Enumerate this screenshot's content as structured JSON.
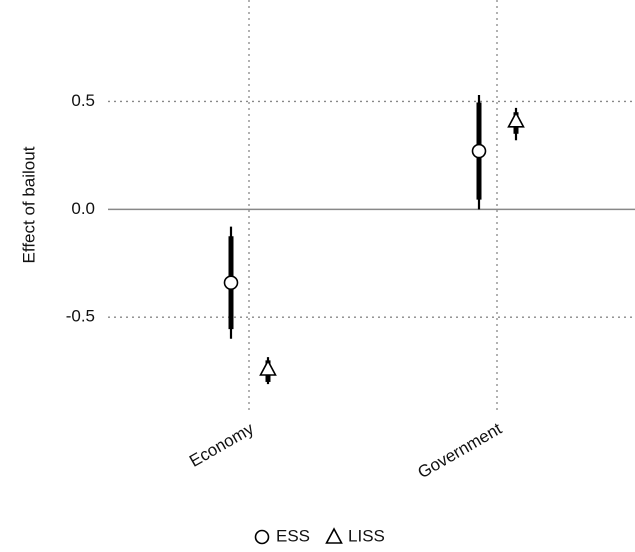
{
  "chart_data": {
    "type": "errorbar",
    "y_label": "Effect of bailout",
    "categories": [
      "Economy",
      "Government"
    ],
    "series": [
      {
        "name": "ESS",
        "marker": "circle",
        "color": "#000000",
        "values": [
          -0.34,
          0.27
        ],
        "lower": [
          -0.6,
          0.0
        ],
        "upper": [
          -0.08,
          0.53
        ],
        "lower_inner": [
          -0.555,
          0.045
        ],
        "upper_inner": [
          -0.125,
          0.495
        ]
      },
      {
        "name": "LISS",
        "marker": "triangle",
        "color": "#000000",
        "values": [
          -0.74,
          0.41
        ],
        "lower": [
          -0.81,
          0.32
        ],
        "upper": [
          -0.685,
          0.47
        ],
        "lower_inner": [
          -0.8,
          0.35
        ],
        "upper_inner": [
          -0.7,
          0.45
        ]
      }
    ],
    "reference_line": 0,
    "ylim": [
      -0.93,
      0.97
    ],
    "yticks": [
      {
        "value": -0.5,
        "label": "-0.5"
      },
      {
        "value": 0,
        "label": "0.0"
      },
      {
        "value": 0.5,
        "label": "0.5"
      }
    ],
    "grid": true,
    "legend": "bottom"
  }
}
